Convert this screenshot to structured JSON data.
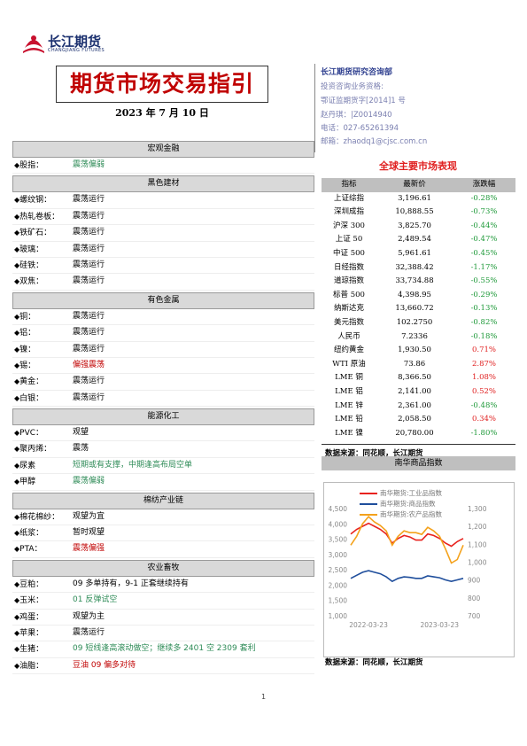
{
  "header": {
    "logo_cn": "长江期货",
    "logo_en": "CHANGJIANG FUTURES",
    "title": "期货市场交易指引",
    "date": "2023 年 7 月 10 日"
  },
  "contact": {
    "dept": "长江期货研究咨询部",
    "qualification": "投资咨询业务资格:",
    "license": "鄂证监期货字[2014]1 号",
    "analyst": "赵丹琪：|Z0014940",
    "phone": "电话：027-65261394",
    "email": "邮箱：zhaodq1@cjsc.com.cn"
  },
  "market": {
    "title": "全球主要市场表现",
    "columns": [
      "指标",
      "最新价",
      "涨跌幅"
    ],
    "rows": [
      [
        "上证综指",
        "3,196.61",
        "-0.28%"
      ],
      [
        "深圳成指",
        "10,888.55",
        "-0.73%"
      ],
      [
        "沪深 300",
        "3,825.70",
        "-0.44%"
      ],
      [
        "上证 50",
        "2,489.54",
        "-0.47%"
      ],
      [
        "中证 500",
        "5,961.61",
        "-0.45%"
      ],
      [
        "日经指数",
        "32,388.42",
        "-1.17%"
      ],
      [
        "道琼指数",
        "33,734.88",
        "-0.55%"
      ],
      [
        "标普 500",
        "4,398.95",
        "-0.29%"
      ],
      [
        "纳斯达克",
        "13,660.72",
        "-0.13%"
      ],
      [
        "美元指数",
        "102.2750",
        "-0.82%"
      ],
      [
        "人民币",
        "7.2336",
        "-0.18%"
      ],
      [
        "纽约黄金",
        "1,930.50",
        "0.71%"
      ],
      [
        "WTI 原油",
        "73.86",
        "2.87%"
      ],
      [
        "LME 铜",
        "8,366.50",
        "1.08%"
      ],
      [
        "LME 铝",
        "2,141.00",
        "0.52%"
      ],
      [
        "LME 锌",
        "2,361.00",
        "-0.48%"
      ],
      [
        "LME 铅",
        "2,058.50",
        "0.34%"
      ],
      [
        "LME 镍",
        "20,780.00",
        "-1.80%"
      ]
    ],
    "source": "数据来源：同花顺，长江期货"
  },
  "sections": [
    {
      "title": "宏观金融",
      "items": [
        {
          "name": "股指：",
          "view": "震荡偏弱",
          "color": "#2e8b57"
        }
      ]
    },
    {
      "title": "黑色建材",
      "items": [
        {
          "name": "螺纹钢：",
          "view": "震荡运行"
        },
        {
          "name": "热轧卷板：",
          "view": "震荡运行"
        },
        {
          "name": "铁矿石：",
          "view": "震荡运行"
        },
        {
          "name": "玻璃：",
          "view": "震荡运行"
        },
        {
          "name": "硅铁：",
          "view": "震荡运行"
        },
        {
          "name": "双焦：",
          "view": "震荡运行"
        }
      ]
    },
    {
      "title": "有色金属",
      "items": [
        {
          "name": "铜：",
          "view": "震荡运行"
        },
        {
          "name": "铝：",
          "view": "震荡运行"
        },
        {
          "name": "镍：",
          "view": "震荡运行"
        },
        {
          "name": "锡：",
          "view": "偏强震荡",
          "color": "#c00000"
        },
        {
          "name": "黄金：",
          "view": "震荡运行"
        },
        {
          "name": "白银：",
          "view": "震荡运行"
        }
      ]
    },
    {
      "title": "能源化工",
      "items": [
        {
          "name": "PVC：",
          "view": "观望"
        },
        {
          "name": "聚丙烯：",
          "view": "震荡"
        },
        {
          "name": "尿素",
          "view": "短期或有支撑，中期逢高布局空单",
          "color": "#2e8b57"
        },
        {
          "name": "甲醇",
          "view": "震荡偏弱",
          "color": "#2e8b57"
        }
      ]
    },
    {
      "title": "棉纺产业链",
      "items": [
        {
          "name": "棉花棉纱：",
          "view": "观望为宜"
        },
        {
          "name": "纸浆：",
          "view": "暂时观望"
        },
        {
          "name": "PTA：",
          "view": "震荡偏强",
          "color": "#c00000"
        }
      ]
    },
    {
      "title": "农业畜牧",
      "items": [
        {
          "name": "豆粕：",
          "view": "09 多单持有，9-1 正套继续持有"
        },
        {
          "name": "玉米：",
          "view": "01 反弹试空",
          "color": "#2e8b57"
        },
        {
          "name": "鸡蛋：",
          "view": "观望为主"
        },
        {
          "name": "苹果：",
          "view": "震荡运行"
        },
        {
          "name": "生猪：",
          "view": "09 短线逢高滚动做空；继续多 2401 空 2309 套利",
          "color": "#2e8b57"
        },
        {
          "name": "油脂：",
          "view": "豆油 09 偏多对待",
          "color": "#c00000"
        }
      ]
    }
  ],
  "chart_data": {
    "type": "line",
    "title": "南华商品指数",
    "source": "数据来源：同花顺，长江期货",
    "categories": [
      null,
      null,
      null,
      "2022-03-23",
      null,
      null,
      null,
      null,
      null,
      null,
      null,
      null,
      null,
      null,
      null,
      "2023-03-23",
      null,
      null,
      null,
      null
    ],
    "series": [
      {
        "name": "南华期货:工业品指数",
        "color": "#e8221e",
        "values": [
          3700,
          3850,
          3950,
          4050,
          3950,
          3850,
          3700,
          3400,
          3550,
          3650,
          3600,
          3500,
          3500,
          3700,
          3650,
          3550,
          3400,
          3300,
          3450,
          3550
        ]
      },
      {
        "name": "南华期货:商品指数",
        "color": "#1f4e9c",
        "values": [
          2250,
          2350,
          2450,
          2500,
          2450,
          2400,
          2300,
          2150,
          2250,
          2300,
          2280,
          2250,
          2250,
          2330,
          2300,
          2270,
          2200,
          2150,
          2200,
          2250
        ]
      },
      {
        "name": "南华期货:农产品指数",
        "color": "#f4a21c",
        "axis": "y2",
        "values": [
          1100,
          1150,
          1220,
          1260,
          1230,
          1210,
          1180,
          1100,
          1150,
          1180,
          1170,
          1170,
          1160,
          1200,
          1180,
          1150,
          1080,
          1000,
          1020,
          1100
        ]
      }
    ],
    "ylim": [
      1000,
      4500
    ],
    "yticks": [
      {
        "value": 1000,
        "label": "1,000"
      },
      {
        "value": 1500,
        "label": "1,500"
      },
      {
        "value": 2000,
        "label": "2,000"
      },
      {
        "value": 2500,
        "label": "2,500"
      },
      {
        "value": 3000,
        "label": "3,000"
      },
      {
        "value": 3500,
        "label": "3,500"
      },
      {
        "value": 4000,
        "label": "4,000"
      },
      {
        "value": 4500,
        "label": "4,500"
      }
    ],
    "y2lim": [
      700,
      1300
    ],
    "y2ticks": [
      700,
      800,
      900,
      {
        "value": 1000,
        "label": "1,000"
      },
      {
        "value": 1100,
        "label": "1,100"
      },
      {
        "value": 1200,
        "label": "1,200"
      },
      {
        "value": 1300,
        "label": "1,300"
      }
    ],
    "grid": false,
    "legend": "top-left"
  },
  "page_number": "1"
}
